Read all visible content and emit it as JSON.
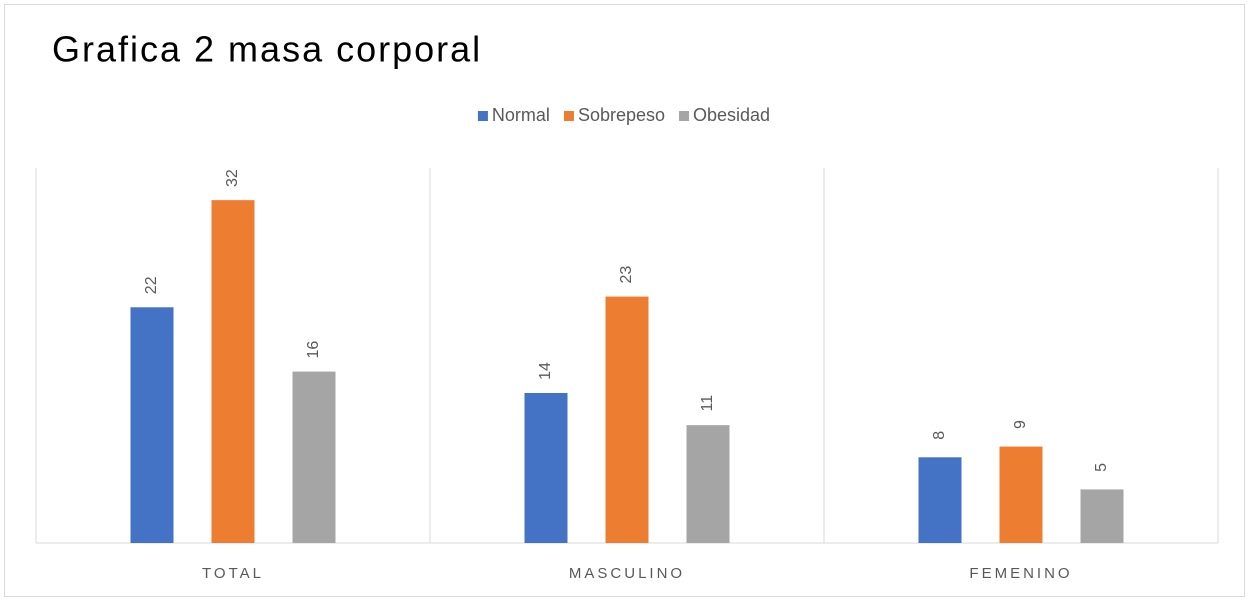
{
  "chart_data": {
    "type": "bar",
    "title": "Grafica 2 masa corporal",
    "categories": [
      "TOTAL",
      "MASCULINO",
      "FEMENINO"
    ],
    "series": [
      {
        "name": "Normal",
        "color": "#4472c4",
        "values": [
          22,
          14,
          8
        ]
      },
      {
        "name": "Sobrepeso",
        "color": "#ed7d31",
        "values": [
          32,
          23,
          9
        ]
      },
      {
        "name": "Obesidad",
        "color": "#a5a5a5",
        "values": [
          16,
          11,
          5
        ]
      }
    ],
    "ylim": [
      0,
      35
    ],
    "legend": "top"
  }
}
